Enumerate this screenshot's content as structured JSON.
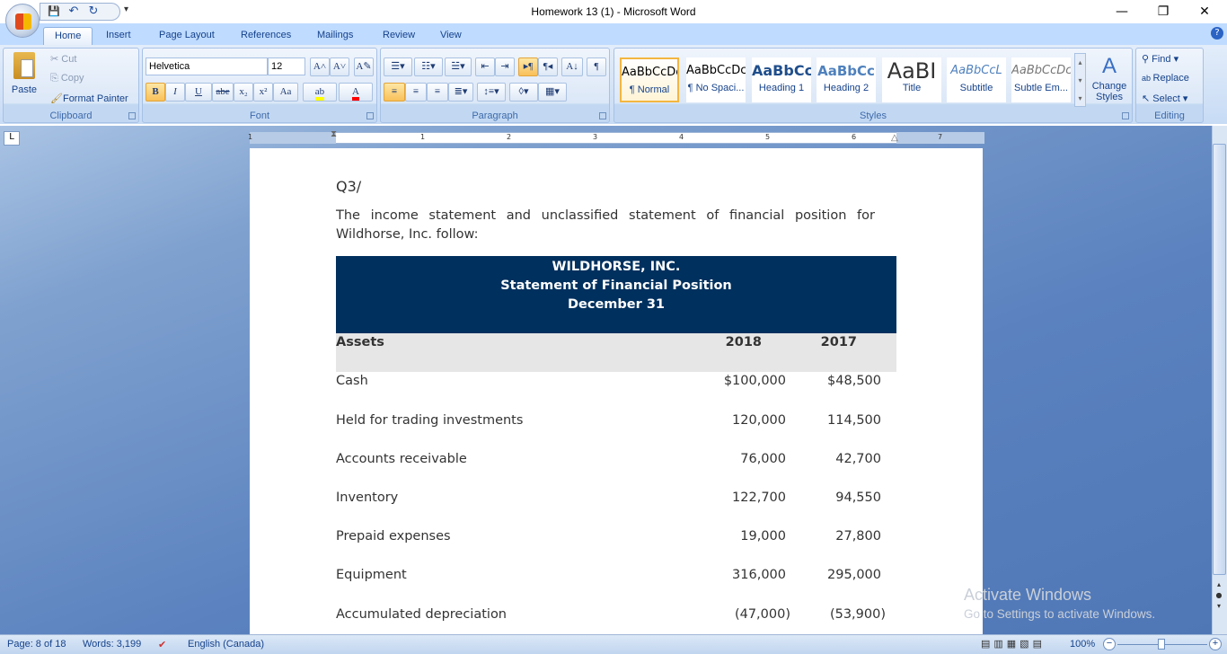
{
  "window": {
    "title": "Homework 13 (1) - Microsoft Word",
    "minimize": "—",
    "restore": "❐",
    "close": "✕"
  },
  "qat": {
    "save": "💾",
    "undo": "↶",
    "redo": "↻",
    "customize": "▾"
  },
  "tabs": [
    "Home",
    "Insert",
    "Page Layout",
    "References",
    "Mailings",
    "Review",
    "View"
  ],
  "active_tab": "Home",
  "ribbon": {
    "clipboard": {
      "label": "Clipboard",
      "paste": "Paste",
      "cut": "Cut",
      "copy": "Copy",
      "format_painter": "Format Painter"
    },
    "font": {
      "label": "Font",
      "font_name": "Helvetica",
      "font_size": "12",
      "bold": "B",
      "italic": "I",
      "underline": "U",
      "strike": "abe",
      "subscript": "x₂",
      "superscript": "x²",
      "change_case": "Aa",
      "grow": "A˄",
      "shrink": "A˅",
      "clear": "A✎",
      "highlight_color": "#ffff00",
      "font_color": "#ff0000"
    },
    "paragraph": {
      "label": "Paragraph"
    },
    "styles": {
      "label": "Styles",
      "items": [
        {
          "preview": "AaBbCcDc",
          "name": "¶ Normal"
        },
        {
          "preview": "AaBbCcDc",
          "name": "¶ No Spaci..."
        },
        {
          "preview": "AaBbCc",
          "name": "Heading 1"
        },
        {
          "preview": "AaBbCc",
          "name": "Heading 2"
        },
        {
          "preview": "AaBI",
          "name": "Title"
        },
        {
          "preview": "AaBbCcL",
          "name": "Subtitle"
        },
        {
          "preview": "AaBbCcDc",
          "name": "Subtle Em..."
        }
      ],
      "selected": "¶ Normal",
      "change_styles": "Change Styles"
    },
    "editing": {
      "label": "Editing",
      "find": "Find",
      "replace": "Replace",
      "select": "Select"
    }
  },
  "ruler": {
    "marks": [
      "1",
      "1",
      "2",
      "3",
      "4",
      "5",
      "6",
      "7"
    ]
  },
  "document": {
    "heading": "Q3/",
    "intro": "The income statement and unclassified statement of financial position for Wildhorse, Inc. follow:",
    "table": {
      "header_lines": [
        "WILDHORSE, INC.",
        "Statement of Financial Position",
        "December 31"
      ],
      "header_color": "#00305e",
      "columns": [
        "Assets",
        "2018",
        "2017"
      ],
      "rows": [
        [
          "Cash",
          "$100,000",
          "$48,500"
        ],
        [
          "Held for trading investments",
          "120,000",
          "114,500"
        ],
        [
          "Accounts receivable",
          "76,000",
          "42,700"
        ],
        [
          "Inventory",
          "122,700",
          "94,550"
        ],
        [
          "Prepaid expenses",
          "19,000",
          "27,800"
        ],
        [
          "Equipment",
          "316,000",
          "295,000"
        ],
        [
          "Accumulated depreciation",
          "(47,000)",
          "(53,900)"
        ]
      ]
    }
  },
  "watermark": {
    "line1": "Activate Windows",
    "line2": "Go to Settings to activate Windows."
  },
  "status": {
    "page": "Page: 8 of 18",
    "words": "Words: 3,199",
    "language": "English (Canada)",
    "zoom": "100%",
    "zoom_level_percent": 100
  }
}
